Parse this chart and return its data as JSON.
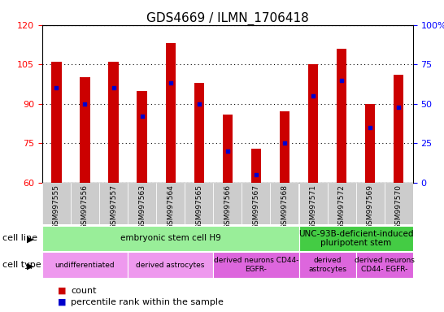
{
  "title": "GDS4669 / ILMN_1706418",
  "samples": [
    "GSM997555",
    "GSM997556",
    "GSM997557",
    "GSM997563",
    "GSM997564",
    "GSM997565",
    "GSM997566",
    "GSM997567",
    "GSM997568",
    "GSM997571",
    "GSM997572",
    "GSM997569",
    "GSM997570"
  ],
  "counts": [
    106,
    100,
    106,
    95,
    113,
    98,
    86,
    73,
    87,
    105,
    111,
    90,
    101
  ],
  "percentiles": [
    60,
    50,
    60,
    42,
    63,
    50,
    20,
    5,
    25,
    55,
    65,
    35,
    48
  ],
  "ylim_left": [
    60,
    120
  ],
  "ylim_right": [
    0,
    100
  ],
  "yticks_left": [
    60,
    75,
    90,
    105,
    120
  ],
  "yticks_right": [
    0,
    25,
    50,
    75,
    100
  ],
  "ytick_labels_right": [
    "0",
    "25",
    "50",
    "75",
    "100%"
  ],
  "bar_color": "#cc0000",
  "dot_color": "#0000cc",
  "bar_bottom": 60,
  "bar_width": 0.35,
  "cell_line_data": [
    {
      "label": "embryonic stem cell H9",
      "start": 0,
      "end": 9,
      "color": "#99ee99"
    },
    {
      "label": "UNC-93B-deficient-induced\npluripotent stem",
      "start": 9,
      "end": 13,
      "color": "#44cc44"
    }
  ],
  "cell_type_data": [
    {
      "label": "undifferentiated",
      "start": 0,
      "end": 3,
      "color": "#ee99ee"
    },
    {
      "label": "derived astrocytes",
      "start": 3,
      "end": 6,
      "color": "#ee99ee"
    },
    {
      "label": "derived neurons CD44-\nEGFR-",
      "start": 6,
      "end": 9,
      "color": "#dd66dd"
    },
    {
      "label": "derived\nastrocytes",
      "start": 9,
      "end": 11,
      "color": "#dd66dd"
    },
    {
      "label": "derived neurons\nCD44- EGFR-",
      "start": 11,
      "end": 13,
      "color": "#dd66dd"
    }
  ],
  "legend_count_color": "#cc0000",
  "legend_pct_color": "#0000cc"
}
